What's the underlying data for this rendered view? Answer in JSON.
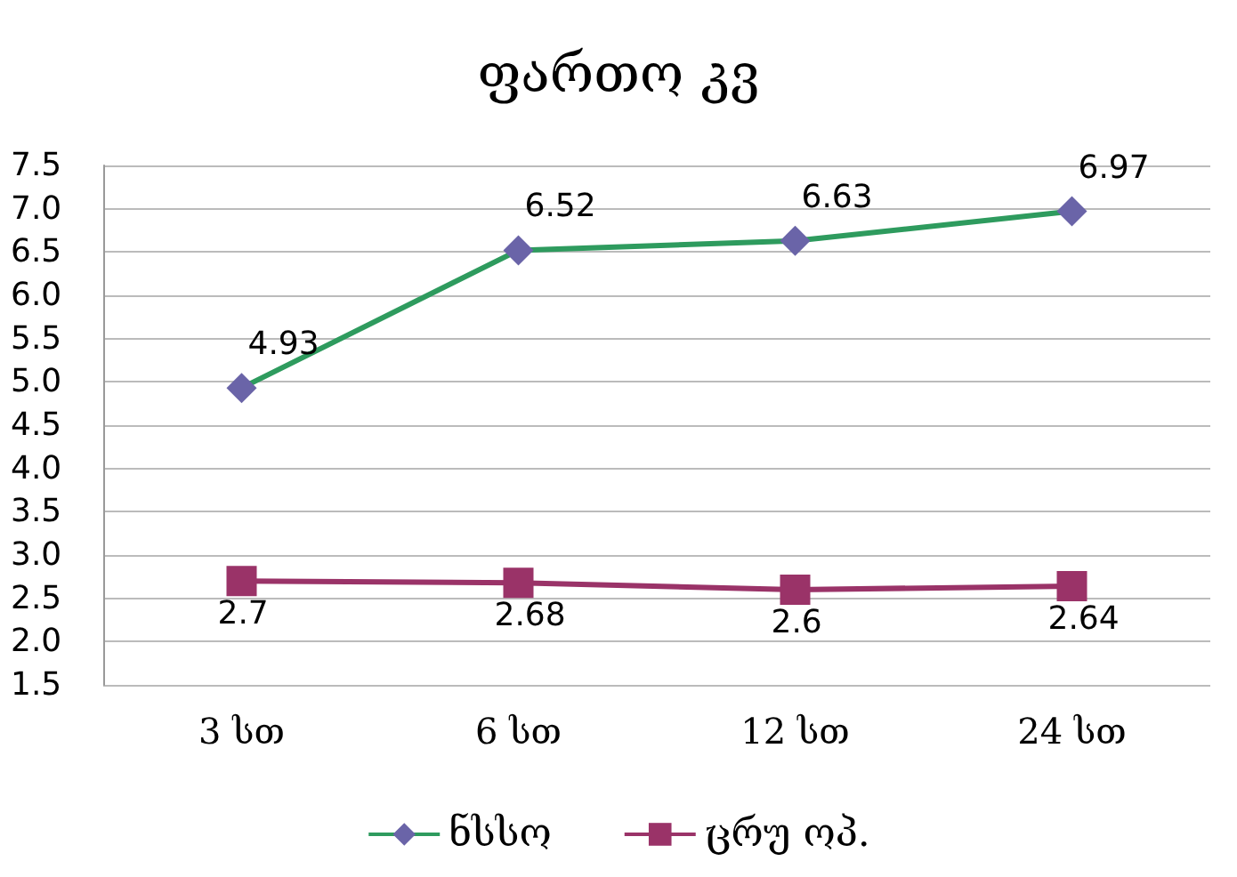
{
  "chart_data": {
    "type": "line",
    "title": "ფართო კვ",
    "categories": [
      "3 სთ",
      "6 სთ",
      "12 სთ",
      "24 სთ"
    ],
    "series": [
      {
        "name": "ნსსო",
        "color": "#2e9b5e",
        "marker": "diamond",
        "colors": [
          "#6a64a8",
          "#6a64a8",
          "#6a64a8",
          "#6a64a8"
        ],
        "values": [
          4.93,
          6.52,
          6.63,
          6.97
        ]
      },
      {
        "name": "ცრუ ოპ.",
        "color": "#9a3368",
        "marker": "square",
        "values": [
          2.7,
          2.68,
          2.6,
          2.64
        ]
      }
    ],
    "ylim": [
      1.5,
      7.5
    ],
    "yticks": [
      1.5,
      {
        "value": 2,
        "label": "2.0"
      },
      2.5,
      {
        "value": 3,
        "label": "3.0"
      },
      3.5,
      {
        "value": 4,
        "label": "4.0"
      },
      4.5,
      {
        "value": 5,
        "label": "5.0"
      },
      5.5,
      {
        "value": 6,
        "label": "6.0"
      },
      6.5,
      {
        "value": 7,
        "label": "7.0"
      },
      7.5
    ],
    "grid": "y",
    "legend": "bottom",
    "data_labels": true
  }
}
